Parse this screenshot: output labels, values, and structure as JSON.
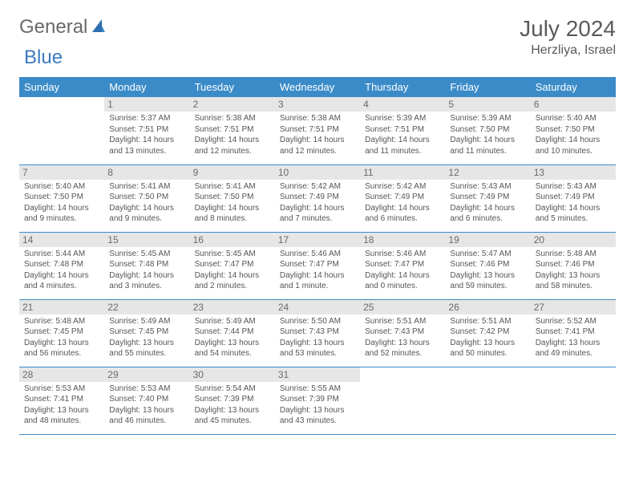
{
  "brand": {
    "part1": "General",
    "part2": "Blue"
  },
  "title": "July 2024",
  "location": "Herzliya, Israel",
  "colors": {
    "header_bg": "#3b8bc9",
    "header_text": "#ffffff",
    "daynum_bg": "#e6e6e6",
    "border": "#3b8bc9",
    "brand_gray": "#6a6a6a",
    "brand_blue": "#3b7bbf"
  },
  "weekdays": [
    "Sunday",
    "Monday",
    "Tuesday",
    "Wednesday",
    "Thursday",
    "Friday",
    "Saturday"
  ],
  "weeks": [
    [
      {
        "n": "",
        "sr": "",
        "ss": "",
        "dl": ""
      },
      {
        "n": "1",
        "sr": "Sunrise: 5:37 AM",
        "ss": "Sunset: 7:51 PM",
        "dl": "Daylight: 14 hours and 13 minutes."
      },
      {
        "n": "2",
        "sr": "Sunrise: 5:38 AM",
        "ss": "Sunset: 7:51 PM",
        "dl": "Daylight: 14 hours and 12 minutes."
      },
      {
        "n": "3",
        "sr": "Sunrise: 5:38 AM",
        "ss": "Sunset: 7:51 PM",
        "dl": "Daylight: 14 hours and 12 minutes."
      },
      {
        "n": "4",
        "sr": "Sunrise: 5:39 AM",
        "ss": "Sunset: 7:51 PM",
        "dl": "Daylight: 14 hours and 11 minutes."
      },
      {
        "n": "5",
        "sr": "Sunrise: 5:39 AM",
        "ss": "Sunset: 7:50 PM",
        "dl": "Daylight: 14 hours and 11 minutes."
      },
      {
        "n": "6",
        "sr": "Sunrise: 5:40 AM",
        "ss": "Sunset: 7:50 PM",
        "dl": "Daylight: 14 hours and 10 minutes."
      }
    ],
    [
      {
        "n": "7",
        "sr": "Sunrise: 5:40 AM",
        "ss": "Sunset: 7:50 PM",
        "dl": "Daylight: 14 hours and 9 minutes."
      },
      {
        "n": "8",
        "sr": "Sunrise: 5:41 AM",
        "ss": "Sunset: 7:50 PM",
        "dl": "Daylight: 14 hours and 9 minutes."
      },
      {
        "n": "9",
        "sr": "Sunrise: 5:41 AM",
        "ss": "Sunset: 7:50 PM",
        "dl": "Daylight: 14 hours and 8 minutes."
      },
      {
        "n": "10",
        "sr": "Sunrise: 5:42 AM",
        "ss": "Sunset: 7:49 PM",
        "dl": "Daylight: 14 hours and 7 minutes."
      },
      {
        "n": "11",
        "sr": "Sunrise: 5:42 AM",
        "ss": "Sunset: 7:49 PM",
        "dl": "Daylight: 14 hours and 6 minutes."
      },
      {
        "n": "12",
        "sr": "Sunrise: 5:43 AM",
        "ss": "Sunset: 7:49 PM",
        "dl": "Daylight: 14 hours and 6 minutes."
      },
      {
        "n": "13",
        "sr": "Sunrise: 5:43 AM",
        "ss": "Sunset: 7:49 PM",
        "dl": "Daylight: 14 hours and 5 minutes."
      }
    ],
    [
      {
        "n": "14",
        "sr": "Sunrise: 5:44 AM",
        "ss": "Sunset: 7:48 PM",
        "dl": "Daylight: 14 hours and 4 minutes."
      },
      {
        "n": "15",
        "sr": "Sunrise: 5:45 AM",
        "ss": "Sunset: 7:48 PM",
        "dl": "Daylight: 14 hours and 3 minutes."
      },
      {
        "n": "16",
        "sr": "Sunrise: 5:45 AM",
        "ss": "Sunset: 7:47 PM",
        "dl": "Daylight: 14 hours and 2 minutes."
      },
      {
        "n": "17",
        "sr": "Sunrise: 5:46 AM",
        "ss": "Sunset: 7:47 PM",
        "dl": "Daylight: 14 hours and 1 minute."
      },
      {
        "n": "18",
        "sr": "Sunrise: 5:46 AM",
        "ss": "Sunset: 7:47 PM",
        "dl": "Daylight: 14 hours and 0 minutes."
      },
      {
        "n": "19",
        "sr": "Sunrise: 5:47 AM",
        "ss": "Sunset: 7:46 PM",
        "dl": "Daylight: 13 hours and 59 minutes."
      },
      {
        "n": "20",
        "sr": "Sunrise: 5:48 AM",
        "ss": "Sunset: 7:46 PM",
        "dl": "Daylight: 13 hours and 58 minutes."
      }
    ],
    [
      {
        "n": "21",
        "sr": "Sunrise: 5:48 AM",
        "ss": "Sunset: 7:45 PM",
        "dl": "Daylight: 13 hours and 56 minutes."
      },
      {
        "n": "22",
        "sr": "Sunrise: 5:49 AM",
        "ss": "Sunset: 7:45 PM",
        "dl": "Daylight: 13 hours and 55 minutes."
      },
      {
        "n": "23",
        "sr": "Sunrise: 5:49 AM",
        "ss": "Sunset: 7:44 PM",
        "dl": "Daylight: 13 hours and 54 minutes."
      },
      {
        "n": "24",
        "sr": "Sunrise: 5:50 AM",
        "ss": "Sunset: 7:43 PM",
        "dl": "Daylight: 13 hours and 53 minutes."
      },
      {
        "n": "25",
        "sr": "Sunrise: 5:51 AM",
        "ss": "Sunset: 7:43 PM",
        "dl": "Daylight: 13 hours and 52 minutes."
      },
      {
        "n": "26",
        "sr": "Sunrise: 5:51 AM",
        "ss": "Sunset: 7:42 PM",
        "dl": "Daylight: 13 hours and 50 minutes."
      },
      {
        "n": "27",
        "sr": "Sunrise: 5:52 AM",
        "ss": "Sunset: 7:41 PM",
        "dl": "Daylight: 13 hours and 49 minutes."
      }
    ],
    [
      {
        "n": "28",
        "sr": "Sunrise: 5:53 AM",
        "ss": "Sunset: 7:41 PM",
        "dl": "Daylight: 13 hours and 48 minutes."
      },
      {
        "n": "29",
        "sr": "Sunrise: 5:53 AM",
        "ss": "Sunset: 7:40 PM",
        "dl": "Daylight: 13 hours and 46 minutes."
      },
      {
        "n": "30",
        "sr": "Sunrise: 5:54 AM",
        "ss": "Sunset: 7:39 PM",
        "dl": "Daylight: 13 hours and 45 minutes."
      },
      {
        "n": "31",
        "sr": "Sunrise: 5:55 AM",
        "ss": "Sunset: 7:39 PM",
        "dl": "Daylight: 13 hours and 43 minutes."
      },
      {
        "n": "",
        "sr": "",
        "ss": "",
        "dl": ""
      },
      {
        "n": "",
        "sr": "",
        "ss": "",
        "dl": ""
      },
      {
        "n": "",
        "sr": "",
        "ss": "",
        "dl": ""
      }
    ]
  ]
}
